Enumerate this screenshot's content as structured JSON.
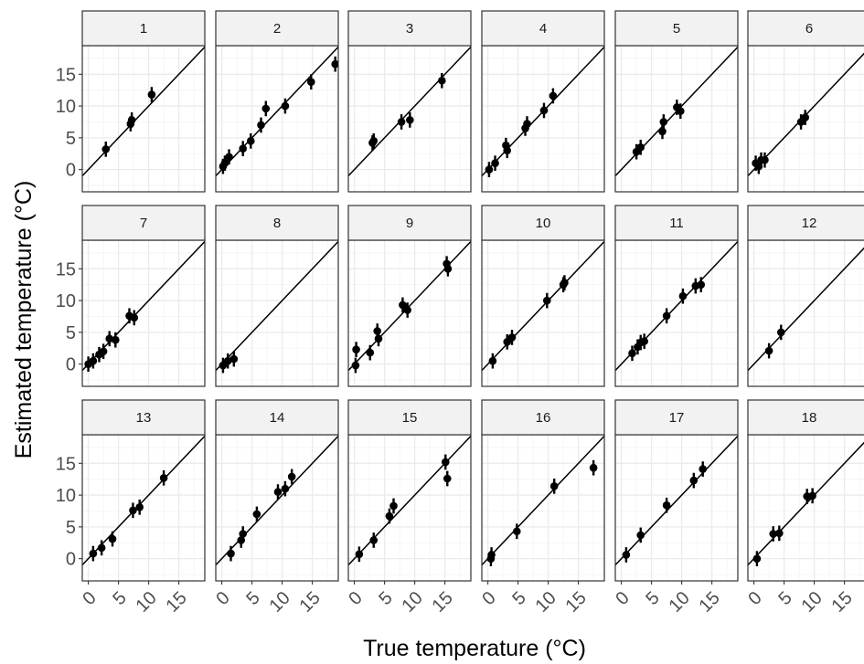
{
  "chart_data": {
    "type": "scatter",
    "xlabel": "True temperature (°C)",
    "ylabel": "Estimated temperature (°C)",
    "xlim": [
      -1,
      19.3
    ],
    "ylim": [
      -3.5,
      19.5
    ],
    "x_ticks": [
      0,
      5,
      10,
      15
    ],
    "y_ticks": [
      0,
      5,
      10,
      15
    ],
    "reference_line": "y = x",
    "grid": true,
    "error_bar_half_width": 1.2,
    "colors": {
      "points": "#000000",
      "panel_border": "#333333",
      "strip_fill": "#f2f2f2",
      "grid": "#ebebeb"
    },
    "panels": [
      {
        "label": "1",
        "points": [
          [
            2.9,
            3.2
          ],
          [
            7.0,
            7.2
          ],
          [
            7.2,
            7.8
          ],
          [
            10.5,
            11.8
          ]
        ]
      },
      {
        "label": "2",
        "points": [
          [
            0.2,
            0.5
          ],
          [
            0.5,
            1.0
          ],
          [
            1.2,
            2.0
          ],
          [
            3.5,
            3.3
          ],
          [
            4.8,
            4.5
          ],
          [
            6.5,
            7.0
          ],
          [
            7.3,
            9.6
          ],
          [
            10.5,
            10.0
          ],
          [
            14.8,
            13.8
          ],
          [
            18.8,
            16.6
          ]
        ]
      },
      {
        "label": "3",
        "points": [
          [
            3.0,
            4.2
          ],
          [
            3.2,
            4.5
          ],
          [
            7.8,
            7.5
          ],
          [
            9.2,
            7.8
          ],
          [
            14.5,
            14.0
          ]
        ]
      },
      {
        "label": "4",
        "points": [
          [
            0.2,
            0.0
          ],
          [
            1.2,
            1.0
          ],
          [
            3.0,
            3.8
          ],
          [
            3.2,
            3.0
          ],
          [
            6.2,
            6.5
          ],
          [
            6.5,
            7.2
          ],
          [
            9.3,
            9.3
          ],
          [
            10.8,
            11.6
          ]
        ]
      },
      {
        "label": "5",
        "points": [
          [
            2.5,
            2.8
          ],
          [
            3.2,
            3.5
          ],
          [
            6.8,
            6.0
          ],
          [
            7.0,
            7.5
          ],
          [
            9.2,
            9.8
          ],
          [
            9.8,
            9.2
          ]
        ]
      },
      {
        "label": "6",
        "points": [
          [
            0.3,
            1.0
          ],
          [
            0.8,
            0.5
          ],
          [
            1.2,
            1.5
          ],
          [
            1.8,
            1.5
          ],
          [
            7.8,
            7.5
          ],
          [
            8.5,
            8.2
          ]
        ]
      },
      {
        "label": "7",
        "points": [
          [
            0.0,
            0.0
          ],
          [
            0.8,
            0.5
          ],
          [
            1.8,
            1.5
          ],
          [
            2.5,
            2.0
          ],
          [
            3.5,
            4.0
          ],
          [
            4.5,
            3.8
          ],
          [
            6.8,
            7.6
          ],
          [
            7.6,
            7.3
          ]
        ]
      },
      {
        "label": "8",
        "points": [
          [
            0.2,
            -0.2
          ],
          [
            1.0,
            0.5
          ],
          [
            2.0,
            0.8
          ]
        ]
      },
      {
        "label": "9",
        "points": [
          [
            0.2,
            -0.2
          ],
          [
            0.3,
            2.3
          ],
          [
            2.6,
            1.8
          ],
          [
            3.8,
            5.2
          ],
          [
            4.0,
            4.0
          ],
          [
            8.0,
            9.3
          ],
          [
            8.8,
            8.5
          ],
          [
            15.3,
            15.8
          ],
          [
            15.5,
            15.0
          ]
        ]
      },
      {
        "label": "10",
        "points": [
          [
            0.8,
            0.5
          ],
          [
            3.2,
            3.5
          ],
          [
            4.0,
            4.2
          ],
          [
            9.8,
            10.0
          ],
          [
            12.5,
            12.5
          ],
          [
            12.7,
            12.8
          ]
        ]
      },
      {
        "label": "11",
        "points": [
          [
            1.8,
            1.7
          ],
          [
            2.7,
            2.7
          ],
          [
            3.2,
            3.4
          ],
          [
            3.8,
            3.6
          ],
          [
            7.5,
            7.6
          ],
          [
            10.2,
            10.7
          ],
          [
            12.3,
            12.3
          ],
          [
            13.2,
            12.5
          ]
        ]
      },
      {
        "label": "12",
        "points": [
          [
            2.5,
            2.1
          ],
          [
            4.5,
            5.0
          ]
        ]
      },
      {
        "label": "13",
        "points": [
          [
            0.8,
            0.8
          ],
          [
            2.2,
            1.7
          ],
          [
            4.0,
            3.1
          ],
          [
            7.4,
            7.6
          ],
          [
            8.5,
            8.1
          ],
          [
            12.5,
            12.7
          ]
        ]
      },
      {
        "label": "14",
        "points": [
          [
            1.5,
            0.8
          ],
          [
            3.2,
            2.9
          ],
          [
            3.5,
            3.9
          ],
          [
            5.8,
            7.0
          ],
          [
            9.3,
            10.5
          ],
          [
            10.5,
            11.0
          ],
          [
            11.6,
            12.9
          ]
        ]
      },
      {
        "label": "15",
        "points": [
          [
            0.8,
            0.7
          ],
          [
            3.2,
            2.9
          ],
          [
            5.8,
            6.7
          ],
          [
            6.5,
            8.3
          ],
          [
            15.1,
            15.2
          ],
          [
            15.4,
            12.6
          ]
        ]
      },
      {
        "label": "16",
        "points": [
          [
            0.5,
            0.0
          ],
          [
            0.6,
            0.6
          ],
          [
            4.8,
            4.3
          ],
          [
            11.0,
            11.4
          ],
          [
            17.5,
            14.3
          ]
        ]
      },
      {
        "label": "17",
        "points": [
          [
            0.8,
            0.6
          ],
          [
            3.2,
            3.7
          ],
          [
            7.5,
            8.4
          ],
          [
            12.0,
            12.3
          ],
          [
            13.5,
            14.1
          ]
        ]
      },
      {
        "label": "18",
        "points": [
          [
            0.5,
            0.0
          ],
          [
            3.2,
            3.9
          ],
          [
            4.2,
            4.0
          ],
          [
            8.8,
            9.8
          ],
          [
            9.7,
            9.9
          ]
        ]
      }
    ]
  }
}
